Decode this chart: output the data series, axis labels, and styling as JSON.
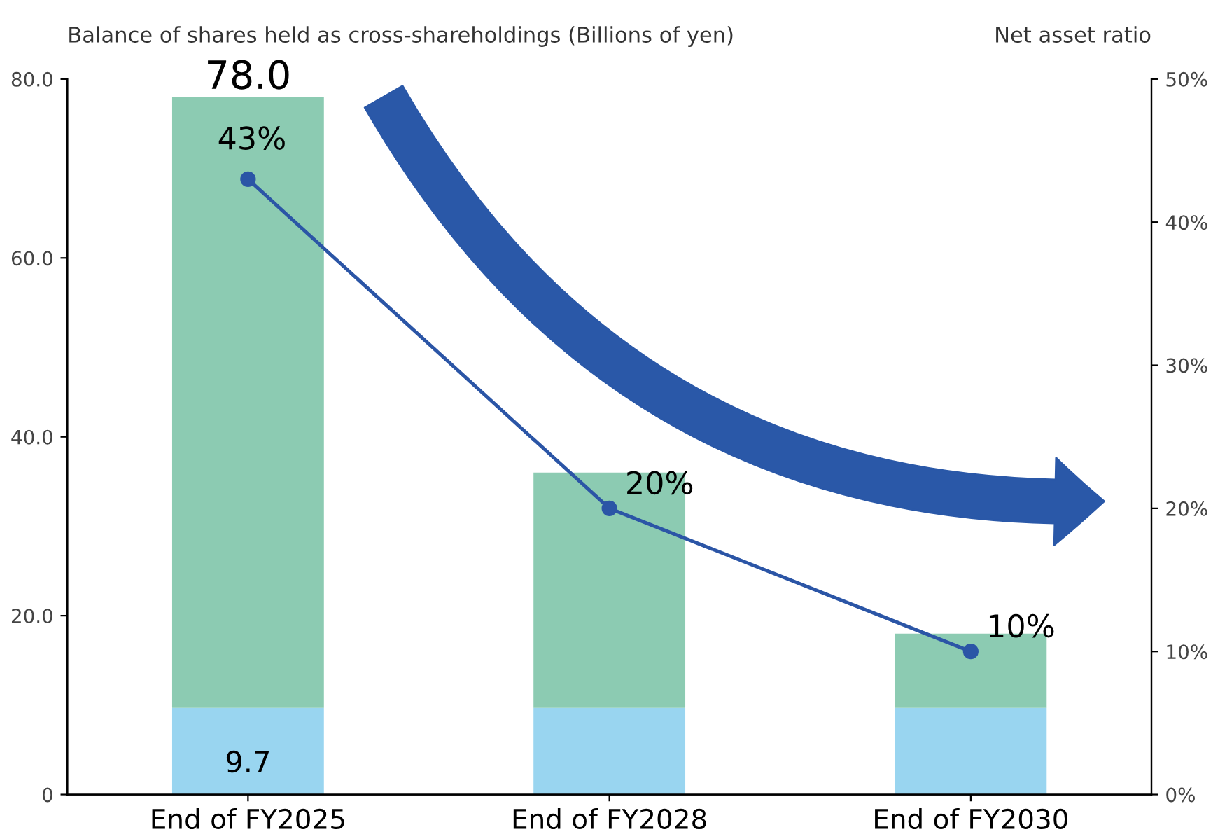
{
  "chart_data": {
    "type": "bar",
    "stacked": true,
    "ylabel": "Balance of shares held as cross-shareholdings (Billions of yen)",
    "y2label": "Net asset ratio",
    "categories": [
      "End of FY2025",
      "End of FY2028",
      "End of FY2030"
    ],
    "series": [
      {
        "color": "#99d5f0",
        "values": [
          9.7,
          9.7,
          9.7
        ],
        "value_labels": [
          "9.7",
          null,
          null
        ]
      },
      {
        "color": "#8ccbb2",
        "values": [
          68.3,
          26.3,
          8.3
        ]
      },
      {
        "type": "line",
        "axis": "y2",
        "color": "#2b55a6",
        "marker": "circle",
        "values": [
          43,
          20,
          10
        ],
        "value_labels": [
          "43%",
          "20%",
          "10%"
        ]
      }
    ],
    "totals": [
      "78.0",
      null,
      null
    ],
    "ylim": [
      0,
      80
    ],
    "yticks": [
      {
        "value": 0,
        "label": "0"
      },
      {
        "value": 20,
        "label": "20.0"
      },
      {
        "value": 40,
        "label": "40.0"
      },
      {
        "value": 60,
        "label": "60.0"
      },
      {
        "value": 80,
        "label": "80.0"
      }
    ],
    "y2lim": [
      0,
      50
    ],
    "y2ticks": [
      {
        "value": 0,
        "label": "0%"
      },
      {
        "value": 10,
        "label": "10%"
      },
      {
        "value": 20,
        "label": "20%"
      },
      {
        "value": 30,
        "label": "30%"
      },
      {
        "value": 40,
        "label": "40%"
      },
      {
        "value": 50,
        "label": "50%"
      }
    ],
    "grid": false,
    "legend": false
  }
}
